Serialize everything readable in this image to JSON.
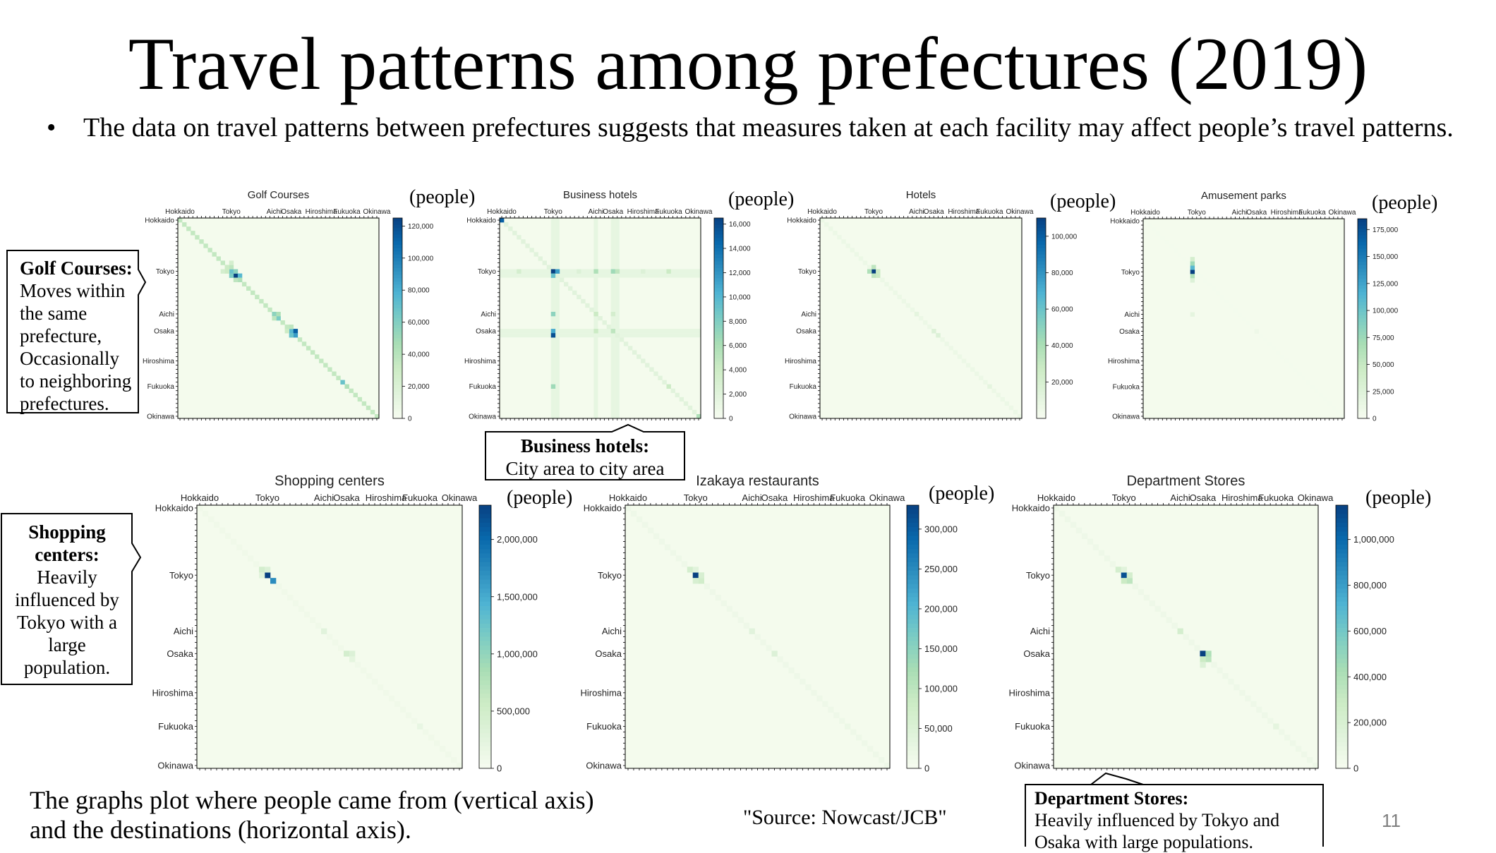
{
  "slide": {
    "title": "Travel patterns among prefectures (2019)",
    "bullet_marker": "•",
    "bullet": "The data on travel patterns between prefectures suggests that measures taken at each facility may affect people’s travel patterns.",
    "bottom_note_line1": "The graphs plot where people came from (vertical axis)",
    "bottom_note_line2": "and the destinations (horizontal axis).",
    "source": "\"Source: Nowcast/JCB\"",
    "page_number": "11",
    "unit_label": "(people)"
  },
  "callouts": {
    "golf": {
      "heading": "Golf Courses:",
      "lines": [
        "Moves within",
        "the same",
        "prefecture,",
        "Occasionally",
        "to neighboring",
        "prefectures."
      ]
    },
    "hotels": {
      "heading": "Business hotels:",
      "line": "City area to city area"
    },
    "shopping": {
      "heading": "Shopping",
      "lines": [
        "centers:",
        "Heavily",
        "influenced by",
        "Tokyo with a",
        "large",
        "population."
      ]
    },
    "dept": {
      "heading": "Department Stores:",
      "lines": [
        "Heavily influenced by Tokyo and",
        "Osaka with large populations."
      ]
    }
  },
  "colors": {
    "colormap": [
      "#f7fcf0",
      "#e0f3db",
      "#ccebc5",
      "#a8ddb5",
      "#7bccc4",
      "#4eb3d3",
      "#2b8cbe",
      "#0868ac",
      "#084081"
    ]
  },
  "chart_data": [
    {
      "type": "heatmap",
      "title": "Golf Courses",
      "y_tick_labels": [
        "Hokkaido",
        "Tokyo",
        "Aichi",
        "Osaka",
        "Hiroshima",
        "Fukuoka",
        "Okinawa"
      ],
      "x_tick_labels": [
        "Hokkaido",
        "Tokyo",
        "Aichi",
        "Osaka",
        "Hiroshima",
        "Fukuoka",
        "Okinawa"
      ],
      "colorbar_ticks": [
        "0",
        "20,000",
        "40,000",
        "60,000",
        "80,000",
        "100,000",
        "120,000"
      ],
      "vmax": 125000,
      "diagonal_level": 0.28,
      "cells": [
        [
          13,
          13,
          1.0
        ],
        [
          12,
          12,
          0.55
        ],
        [
          13,
          12,
          0.5
        ],
        [
          12,
          13,
          0.45
        ],
        [
          13,
          14,
          0.6
        ],
        [
          14,
          14,
          0.35
        ],
        [
          11,
          12,
          0.3
        ],
        [
          11,
          11,
          0.25
        ],
        [
          10,
          12,
          0.2
        ],
        [
          12,
          10,
          0.2
        ],
        [
          12,
          11,
          0.25
        ],
        [
          14,
          13,
          0.3
        ],
        [
          22,
          22,
          0.45
        ],
        [
          23,
          23,
          0.5
        ],
        [
          22,
          23,
          0.35
        ],
        [
          23,
          22,
          0.3
        ],
        [
          26,
          26,
          0.6
        ],
        [
          26,
          27,
          0.9
        ],
        [
          27,
          27,
          0.7
        ],
        [
          27,
          26,
          0.55
        ],
        [
          25,
          26,
          0.3
        ],
        [
          26,
          25,
          0.25
        ],
        [
          38,
          38,
          0.55
        ],
        [
          39,
          39,
          0.35
        ]
      ]
    },
    {
      "type": "heatmap",
      "title": "Business hotels",
      "y_tick_labels": [
        "Hokkaido",
        "Tokyo",
        "Aichi",
        "Osaka",
        "Hiroshima",
        "Fukuoka",
        "Okinawa"
      ],
      "x_tick_labels": [
        "Hokkaido",
        "Tokyo",
        "Aichi",
        "Osaka",
        "Hiroshima",
        "Fukuoka",
        "Okinawa"
      ],
      "colorbar_ticks": [
        "0",
        "2,000",
        "4,000",
        "6,000",
        "8,000",
        "10,000",
        "12,000",
        "14,000",
        "16,000"
      ],
      "vmax": 16500,
      "diagonal_level": 0.12,
      "cells": [
        [
          0,
          0,
          0.9
        ],
        [
          12,
          12,
          1.0
        ],
        [
          12,
          13,
          0.7
        ],
        [
          13,
          12,
          0.55
        ],
        [
          12,
          22,
          0.35
        ],
        [
          12,
          26,
          0.4
        ],
        [
          12,
          27,
          0.3
        ],
        [
          26,
          12,
          0.65
        ],
        [
          27,
          12,
          0.95
        ],
        [
          22,
          12,
          0.45
        ],
        [
          12,
          4,
          0.2
        ],
        [
          12,
          39,
          0.25
        ],
        [
          39,
          12,
          0.4
        ],
        [
          26,
          26,
          0.3
        ],
        [
          22,
          22,
          0.25
        ],
        [
          26,
          22,
          0.25
        ],
        [
          22,
          26,
          0.2
        ],
        [
          12,
          18,
          0.15
        ],
        [
          12,
          33,
          0.15
        ],
        [
          46,
          46,
          0.35
        ],
        [
          39,
          39,
          0.25
        ]
      ],
      "bands": {
        "rows": [
          12,
          13,
          26,
          27
        ],
        "cols": [
          12,
          13,
          22,
          26,
          27
        ]
      }
    },
    {
      "type": "heatmap",
      "title": "Hotels",
      "y_tick_labels": [
        "Hokkaido",
        "Tokyo",
        "Aichi",
        "Osaka",
        "Hiroshima",
        "Fukuoka",
        "Okinawa"
      ],
      "x_tick_labels": [
        "Hokkaido",
        "Tokyo",
        "Aichi",
        "Osaka",
        "Hiroshima",
        "Fukuoka",
        "Okinawa"
      ],
      "colorbar_ticks": [
        "20,000",
        "40,000",
        "60,000",
        "80,000",
        "100,000"
      ],
      "vmax": 110000,
      "diagonal_level": 0.06,
      "cells": [
        [
          12,
          12,
          1.0
        ],
        [
          12,
          11,
          0.35
        ],
        [
          11,
          12,
          0.3
        ],
        [
          13,
          12,
          0.3
        ],
        [
          12,
          13,
          0.25
        ],
        [
          13,
          13,
          0.25
        ],
        [
          26,
          26,
          0.15
        ],
        [
          27,
          27,
          0.15
        ],
        [
          22,
          22,
          0.1
        ],
        [
          39,
          39,
          0.1
        ]
      ]
    },
    {
      "type": "heatmap",
      "title": "Amusement parks",
      "y_tick_labels": [
        "Hokkaido",
        "Tokyo",
        "Aichi",
        "Osaka",
        "Hiroshima",
        "Fukuoka",
        "Okinawa"
      ],
      "x_tick_labels": [
        "Hokkaido",
        "Tokyo",
        "Aichi",
        "Osaka",
        "Hiroshima",
        "Fukuoka",
        "Okinawa"
      ],
      "colorbar_ticks": [
        "0",
        "25,000",
        "50,000",
        "75,000",
        "100,000",
        "125,000",
        "150,000",
        "175,000"
      ],
      "vmax": 185000,
      "diagonal_level": 0.02,
      "cells": [
        [
          12,
          11,
          1.0
        ],
        [
          11,
          11,
          0.6
        ],
        [
          10,
          11,
          0.4
        ],
        [
          13,
          11,
          0.35
        ],
        [
          9,
          11,
          0.2
        ],
        [
          14,
          11,
          0.15
        ],
        [
          22,
          11,
          0.1
        ],
        [
          26,
          26,
          0.05
        ]
      ]
    },
    {
      "type": "heatmap",
      "title": "Shopping centers",
      "y_tick_labels": [
        "Hokkaido",
        "Tokyo",
        "Aichi",
        "Osaka",
        "Hiroshima",
        "Fukuoka",
        "Okinawa"
      ],
      "x_tick_labels": [
        "Hokkaido",
        "Tokyo",
        "Aichi",
        "Osaka",
        "Hiroshima",
        "Fukuoka",
        "Okinawa"
      ],
      "colorbar_ticks": [
        "0",
        "500,000",
        "1,000,000",
        "1,500,000",
        "2,000,000"
      ],
      "vmax": 2300000,
      "diagonal_level": 0.04,
      "cells": [
        [
          12,
          12,
          1.0
        ],
        [
          13,
          13,
          0.75
        ],
        [
          11,
          11,
          0.2
        ],
        [
          11,
          12,
          0.15
        ],
        [
          12,
          11,
          0.12
        ],
        [
          22,
          22,
          0.12
        ],
        [
          26,
          26,
          0.2
        ],
        [
          26,
          27,
          0.15
        ],
        [
          27,
          27,
          0.1
        ],
        [
          39,
          39,
          0.08
        ]
      ]
    },
    {
      "type": "heatmap",
      "title": "Izakaya restaurants",
      "y_tick_labels": [
        "Hokkaido",
        "Tokyo",
        "Aichi",
        "Osaka",
        "Hiroshima",
        "Fukuoka",
        "Okinawa"
      ],
      "x_tick_labels": [
        "Hokkaido",
        "Tokyo",
        "Aichi",
        "Osaka",
        "Hiroshima",
        "Fukuoka",
        "Okinawa"
      ],
      "colorbar_ticks": [
        "0",
        "50,000",
        "100,000",
        "150,000",
        "200,000",
        "250,000",
        "300,000"
      ],
      "vmax": 330000,
      "diagonal_level": 0.05,
      "cells": [
        [
          12,
          12,
          1.0
        ],
        [
          13,
          13,
          0.22
        ],
        [
          13,
          12,
          0.18
        ],
        [
          12,
          13,
          0.18
        ],
        [
          11,
          11,
          0.2
        ],
        [
          11,
          12,
          0.12
        ],
        [
          22,
          22,
          0.12
        ],
        [
          26,
          26,
          0.15
        ],
        [
          39,
          39,
          0.06
        ]
      ]
    },
    {
      "type": "heatmap",
      "title": "Department Stores",
      "y_tick_labels": [
        "Hokkaido",
        "Tokyo",
        "Aichi",
        "Osaka",
        "Hiroshima",
        "Fukuoka",
        "Okinawa"
      ],
      "x_tick_labels": [
        "Hokkaido",
        "Tokyo",
        "Aichi",
        "Osaka",
        "Hiroshima",
        "Fukuoka",
        "Okinawa"
      ],
      "colorbar_ticks": [
        "0",
        "200,000",
        "400,000",
        "600,000",
        "800,000",
        "1,000,000"
      ],
      "vmax": 1150000,
      "diagonal_level": 0.05,
      "cells": [
        [
          12,
          12,
          0.95
        ],
        [
          13,
          13,
          0.3
        ],
        [
          13,
          12,
          0.25
        ],
        [
          12,
          13,
          0.2
        ],
        [
          11,
          11,
          0.2
        ],
        [
          11,
          12,
          0.12
        ],
        [
          22,
          22,
          0.2
        ],
        [
          26,
          26,
          1.0
        ],
        [
          27,
          27,
          0.3
        ],
        [
          26,
          27,
          0.35
        ],
        [
          27,
          26,
          0.25
        ],
        [
          28,
          26,
          0.15
        ],
        [
          39,
          39,
          0.1
        ]
      ]
    }
  ]
}
